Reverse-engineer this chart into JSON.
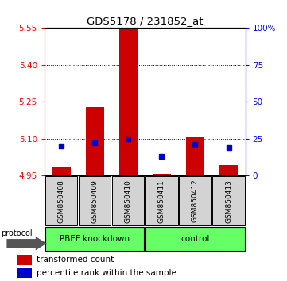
{
  "title": "GDS5178 / 231852_at",
  "samples": [
    "GSM850408",
    "GSM850409",
    "GSM850410",
    "GSM850411",
    "GSM850412",
    "GSM850413"
  ],
  "red_values": [
    4.982,
    5.23,
    5.545,
    4.957,
    5.105,
    4.992
  ],
  "blue_values_pct": [
    20,
    22,
    25,
    13,
    21,
    19
  ],
  "ymin": 4.95,
  "ymax": 5.55,
  "yticks_left": [
    4.95,
    5.1,
    5.25,
    5.4,
    5.55
  ],
  "yticks_right": [
    0,
    25,
    50,
    75,
    100
  ],
  "bar_base": 4.95,
  "bar_width": 0.55,
  "red_color": "#CC0000",
  "blue_color": "#0000CC",
  "legend_red": "transformed count",
  "legend_blue": "percentile rank within the sample",
  "group1_label": "PBEF knockdown",
  "group2_label": "control",
  "protocol_label": "protocol"
}
